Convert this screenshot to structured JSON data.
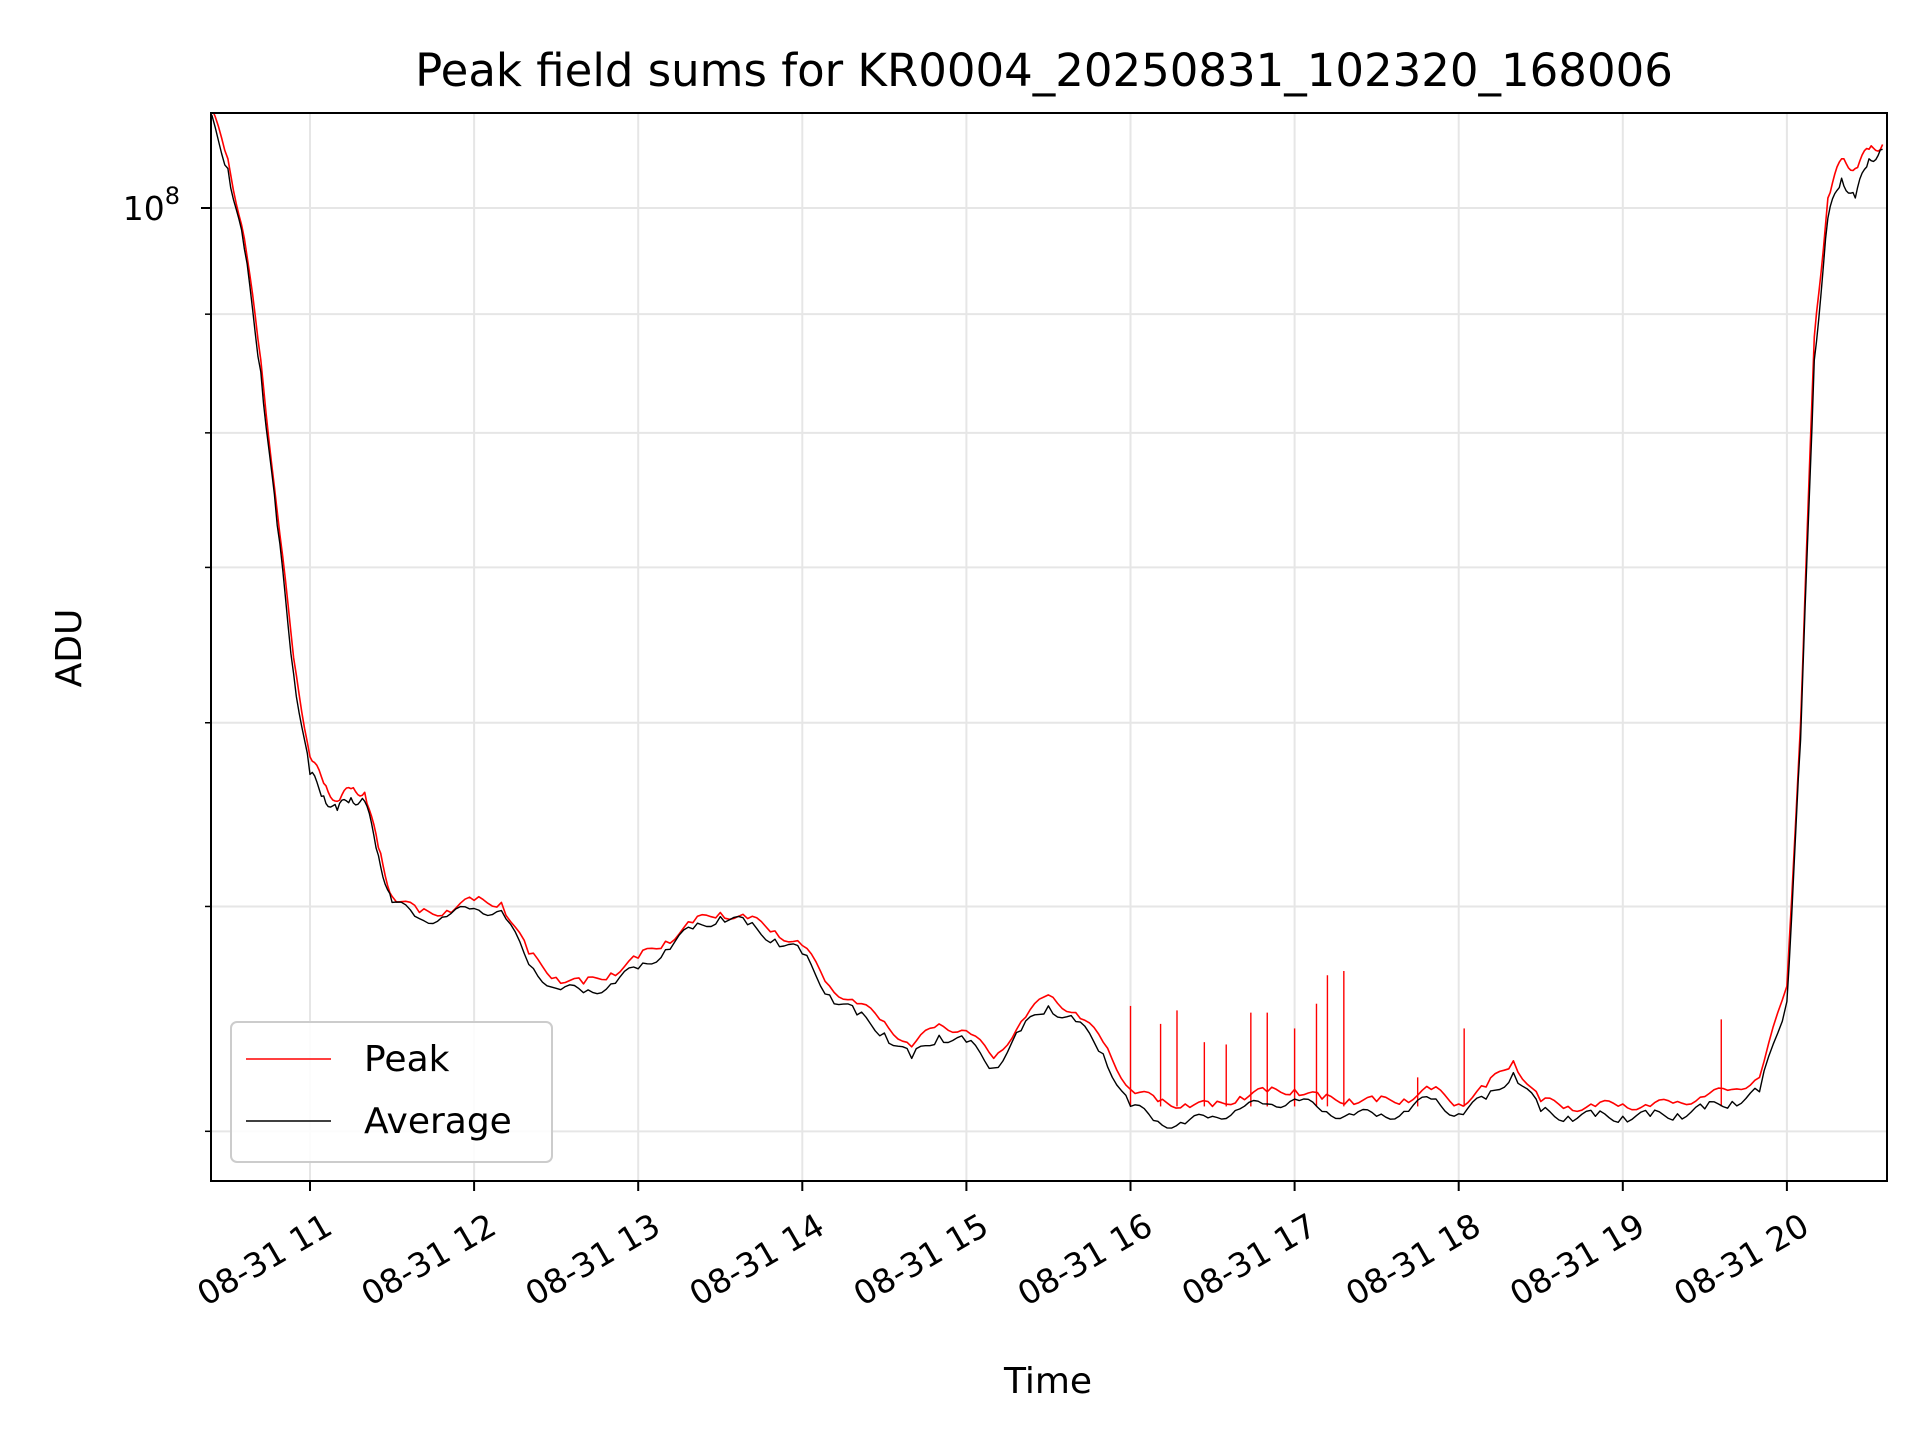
{
  "chart_data": {
    "type": "line",
    "title": "Peak field sums for KR0004_20250831_102320_168006",
    "xlabel": "Time",
    "ylabel": "ADU",
    "x_tick_labels": [
      "08-31 11",
      "08-31 12",
      "08-31 13",
      "08-31 14",
      "08-31 15",
      "08-31 16",
      "08-31 17",
      "08-31 18",
      "08-31 19",
      "08-31 20"
    ],
    "y_tick_label": {
      "base": "10",
      "exponent": "8"
    },
    "y_scale": "log",
    "grid": true,
    "legend_position": "lower-left",
    "xlim": [
      "08-31 10:23",
      "08-31 20:35"
    ],
    "ylim_approx": [
      38000000,
      112000000
    ],
    "series": [
      {
        "name": "Peak",
        "color": "#ff0000",
        "points": [
          [
            "10:23",
            111000000
          ],
          [
            "10:30",
            105000000
          ],
          [
            "10:36",
            97000000
          ],
          [
            "10:42",
            86000000
          ],
          [
            "10:48",
            74000000
          ],
          [
            "10:54",
            64000000
          ],
          [
            "11:00",
            58000000
          ],
          [
            "11:05",
            56500000
          ],
          [
            "11:10",
            55500000
          ],
          [
            "11:15",
            56200000
          ],
          [
            "11:20",
            56000000
          ],
          [
            "11:25",
            53000000
          ],
          [
            "11:30",
            50500000
          ],
          [
            "11:40",
            49700000
          ],
          [
            "11:50",
            49800000
          ],
          [
            "12:00",
            50300000
          ],
          [
            "12:10",
            50200000
          ],
          [
            "12:20",
            47700000
          ],
          [
            "12:30",
            46600000
          ],
          [
            "12:40",
            46300000
          ],
          [
            "12:50",
            46800000
          ],
          [
            "13:00",
            47500000
          ],
          [
            "13:10",
            48300000
          ],
          [
            "13:20",
            49200000
          ],
          [
            "13:30",
            49700000
          ],
          [
            "13:40",
            49400000
          ],
          [
            "13:50",
            48800000
          ],
          [
            "14:00",
            48100000
          ],
          [
            "14:10",
            46200000
          ],
          [
            "14:20",
            45400000
          ],
          [
            "14:30",
            44600000
          ],
          [
            "14:40",
            43500000
          ],
          [
            "14:50",
            44500000
          ],
          [
            "15:00",
            44200000
          ],
          [
            "15:10",
            43000000
          ],
          [
            "15:20",
            44600000
          ],
          [
            "15:30",
            45800000
          ],
          [
            "15:40",
            45000000
          ],
          [
            "15:50",
            43700000
          ],
          [
            "16:00",
            41700000
          ],
          [
            "16:10",
            41200000
          ],
          [
            "16:20",
            41100000
          ],
          [
            "16:30",
            41000000
          ],
          [
            "16:40",
            41400000
          ],
          [
            "16:50",
            41600000
          ],
          [
            "17:00",
            41700000
          ],
          [
            "17:10",
            41300000
          ],
          [
            "17:20",
            41300000
          ],
          [
            "17:30",
            41200000
          ],
          [
            "17:40",
            41300000
          ],
          [
            "17:50",
            41700000
          ],
          [
            "18:00",
            41100000
          ],
          [
            "18:10",
            41800000
          ],
          [
            "18:20",
            42900000
          ],
          [
            "18:30",
            41200000
          ],
          [
            "18:40",
            41000000
          ],
          [
            "18:50",
            41000000
          ],
          [
            "19:00",
            41100000
          ],
          [
            "19:10",
            41000000
          ],
          [
            "19:20",
            41200000
          ],
          [
            "19:30",
            41400000
          ],
          [
            "19:40",
            41700000
          ],
          [
            "19:50",
            42200000
          ],
          [
            "20:00",
            46200000
          ],
          [
            "20:05",
            60000000
          ],
          [
            "20:10",
            88000000
          ],
          [
            "20:15",
            101000000
          ],
          [
            "20:20",
            105000000
          ],
          [
            "20:25",
            104000000
          ],
          [
            "20:30",
            106000000
          ],
          [
            "20:35",
            106500000
          ]
        ],
        "spikes": [
          [
            "16:00",
            45300000
          ],
          [
            "16:11",
            44500000
          ],
          [
            "16:17",
            45100000
          ],
          [
            "16:27",
            43700000
          ],
          [
            "16:35",
            43600000
          ],
          [
            "16:44",
            45000000
          ],
          [
            "16:50",
            45000000
          ],
          [
            "17:00",
            44300000
          ],
          [
            "17:08",
            45400000
          ],
          [
            "17:12",
            46700000
          ],
          [
            "17:18",
            46900000
          ],
          [
            "17:45",
            42200000
          ],
          [
            "18:02",
            44300000
          ],
          [
            "19:36",
            44700000
          ]
        ]
      },
      {
        "name": "Average",
        "color": "#000000",
        "points": [
          [
            "10:23",
            110000000
          ],
          [
            "10:30",
            104000000
          ],
          [
            "10:36",
            96000000
          ],
          [
            "10:42",
            85000000
          ],
          [
            "10:48",
            73000000
          ],
          [
            "10:54",
            63000000
          ],
          [
            "11:00",
            57000000
          ],
          [
            "11:05",
            55800000
          ],
          [
            "11:10",
            55000000
          ],
          [
            "11:15",
            55700000
          ],
          [
            "11:20",
            55500000
          ],
          [
            "11:25",
            52600000
          ],
          [
            "11:30",
            50200000
          ],
          [
            "11:40",
            49400000
          ],
          [
            "11:50",
            49500000
          ],
          [
            "12:00",
            49900000
          ],
          [
            "12:10",
            49800000
          ],
          [
            "12:20",
            47200000
          ],
          [
            "12:30",
            46100000
          ],
          [
            "12:40",
            45900000
          ],
          [
            "12:50",
            46300000
          ],
          [
            "13:00",
            47000000
          ],
          [
            "13:10",
            47900000
          ],
          [
            "13:20",
            48900000
          ],
          [
            "13:30",
            49500000
          ],
          [
            "13:40",
            49100000
          ],
          [
            "13:50",
            48400000
          ],
          [
            "14:00",
            47700000
          ],
          [
            "14:10",
            45800000
          ],
          [
            "14:20",
            44900000
          ],
          [
            "14:30",
            44100000
          ],
          [
            "14:40",
            43000000
          ],
          [
            "14:50",
            44000000
          ],
          [
            "15:00",
            43700000
          ],
          [
            "15:10",
            42600000
          ],
          [
            "15:20",
            44200000
          ],
          [
            "15:30",
            45300000
          ],
          [
            "15:40",
            44600000
          ],
          [
            "15:50",
            43200000
          ],
          [
            "16:00",
            41000000
          ],
          [
            "16:10",
            40400000
          ],
          [
            "16:20",
            40300000
          ],
          [
            "16:30",
            40600000
          ],
          [
            "16:40",
            40900000
          ],
          [
            "16:50",
            41100000
          ],
          [
            "17:00",
            41300000
          ],
          [
            "17:10",
            40800000
          ],
          [
            "17:20",
            40700000
          ],
          [
            "17:30",
            40600000
          ],
          [
            "17:40",
            40800000
          ],
          [
            "17:50",
            41300000
          ],
          [
            "18:00",
            40700000
          ],
          [
            "18:10",
            41300000
          ],
          [
            "18:20",
            42400000
          ],
          [
            "18:30",
            40800000
          ],
          [
            "18:40",
            40600000
          ],
          [
            "18:50",
            40600000
          ],
          [
            "19:00",
            40600000
          ],
          [
            "19:10",
            40600000
          ],
          [
            "19:20",
            40700000
          ],
          [
            "19:30",
            40900000
          ],
          [
            "19:40",
            41200000
          ],
          [
            "19:50",
            41600000
          ],
          [
            "20:00",
            45500000
          ],
          [
            "20:05",
            59000000
          ],
          [
            "20:10",
            86000000
          ],
          [
            "20:15",
            99000000
          ],
          [
            "20:20",
            103000000
          ],
          [
            "20:25",
            101000000
          ],
          [
            "20:30",
            105000000
          ],
          [
            "20:35",
            106000000
          ]
        ]
      }
    ]
  }
}
